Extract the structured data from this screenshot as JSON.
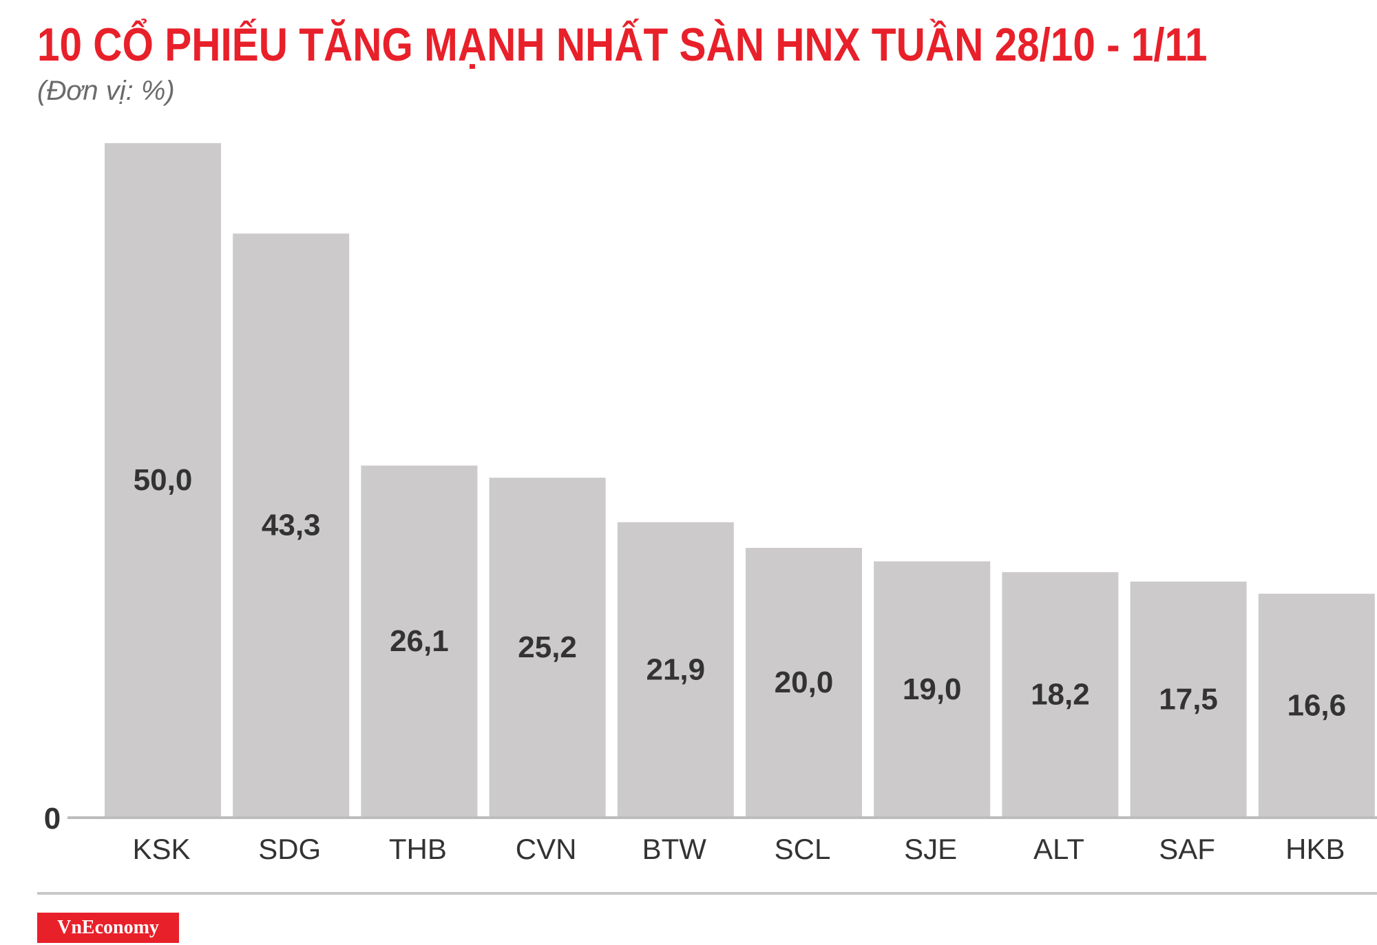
{
  "header": {
    "title": "10 CỔ PHIẾU TĂNG MẠNH NHẤT SÀN HNX TUẦN 28/10 - 1/11",
    "unit": "(Đơn vị: %)"
  },
  "footer": {
    "brand": "VnEconomy"
  },
  "colors": {
    "title": "#e8202a",
    "bar": "#cccacb",
    "label": "#333333",
    "brand_bg": "#e8202a"
  },
  "chart_data": {
    "type": "bar",
    "title": "10 CỔ PHIẾU TĂNG MẠNH NHẤT SÀN HNX TUẦN 28/10 - 1/11",
    "subtitle": "(Đơn vị: %)",
    "categories": [
      "KSK",
      "SDG",
      "THB",
      "CVN",
      "BTW",
      "SCL",
      "SJE",
      "ALT",
      "SAF",
      "HKB"
    ],
    "values": [
      50.0,
      43.3,
      26.1,
      25.2,
      21.9,
      20.0,
      19.0,
      18.2,
      17.5,
      16.6
    ],
    "value_labels": [
      "50,0",
      "43,3",
      "26,1",
      "25,2",
      "21,9",
      "20,0",
      "19,0",
      "18,2",
      "17,5",
      "16,6"
    ],
    "y_tick_labels": [
      "0"
    ],
    "ylim": [
      0,
      50
    ],
    "grid": false,
    "legend": "none"
  }
}
